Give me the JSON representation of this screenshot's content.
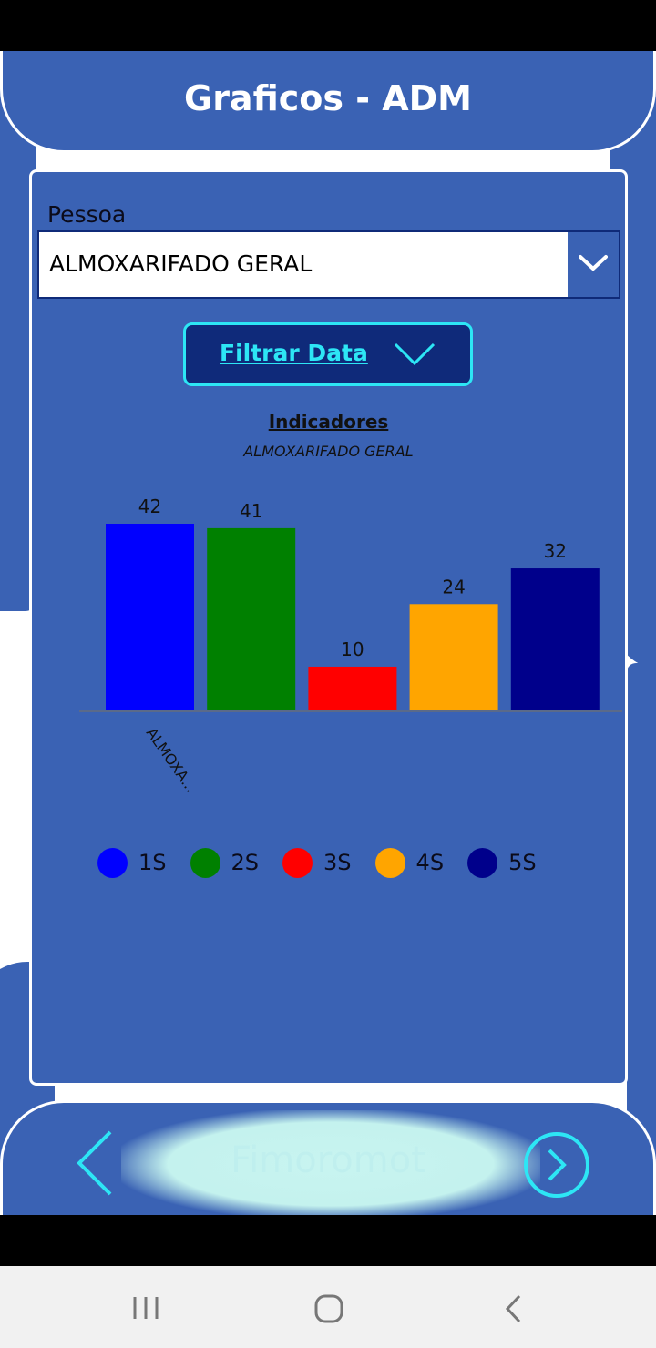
{
  "header": {
    "title": "Graficos - ADM"
  },
  "filter": {
    "pessoa_label": "Pessoa",
    "pessoa_value": "ALMOXARIFADO GERAL",
    "date_button_label": "Filtrar Data"
  },
  "chart_data": {
    "type": "bar",
    "title": "Indicadores",
    "subtitle": "ALMOXARIFADO GERAL",
    "categories": [
      "ALMOXA..."
    ],
    "series": [
      {
        "name": "1S",
        "values": [
          42
        ],
        "color": "#0000FF"
      },
      {
        "name": "2S",
        "values": [
          41
        ],
        "color": "#008000"
      },
      {
        "name": "3S",
        "values": [
          10
        ],
        "color": "#FF0000"
      },
      {
        "name": "4S",
        "values": [
          24
        ],
        "color": "#FFA500"
      },
      {
        "name": "5S",
        "values": [
          32
        ],
        "color": "#00008B"
      }
    ],
    "ylim": [
      0,
      42
    ],
    "legend_position": "bottom",
    "grid": false
  },
  "footer": {
    "text": "Fimoromot"
  },
  "colors": {
    "primary": "#3A62B4",
    "accent": "#2DE6F5",
    "dark": "#0F2A7A"
  },
  "icons": {
    "dropdown": "chevron-down-icon",
    "date_toggle": "chevron-down-icon",
    "prev": "chevron-left-icon",
    "next": "chevron-right-circle-icon",
    "nav_recent": "recent-apps-icon",
    "nav_home": "home-icon",
    "nav_back": "back-icon"
  }
}
